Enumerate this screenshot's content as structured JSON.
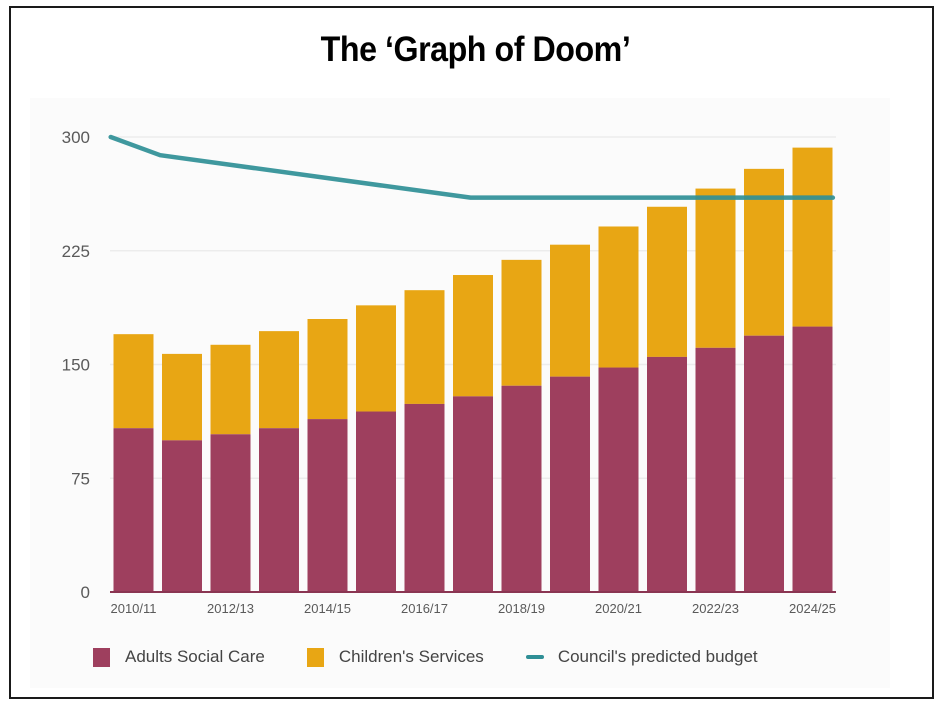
{
  "chart_data": {
    "type": "bar",
    "stacked": true,
    "title": "The ‘Graph of Doom’",
    "xlabel": "",
    "ylabel": "",
    "ylim": [
      0,
      300
    ],
    "yticks": [
      0,
      75,
      150,
      225,
      300
    ],
    "grid": true,
    "legend_position": "bottom",
    "categories": [
      "2010/11",
      "2011/12",
      "2012/13",
      "2013/14",
      "2014/15",
      "2015/16",
      "2016/17",
      "2017/18",
      "2018/19",
      "2019/20",
      "2020/21",
      "2021/22",
      "2022/23",
      "2023/24",
      "2024/25"
    ],
    "xtick_labels": [
      "2010/11",
      "2012/13",
      "2014/15",
      "2016/17",
      "2018/19",
      "2020/21",
      "2022/23",
      "2024/25"
    ],
    "series": [
      {
        "name": "Adults Social Care",
        "type": "bar",
        "color": "#9e3f5e",
        "values": [
          108,
          100,
          104,
          108,
          114,
          119,
          124,
          129,
          136,
          142,
          148,
          155,
          161,
          169,
          175
        ]
      },
      {
        "name": "Children's Services",
        "type": "bar",
        "color": "#e8a614",
        "values": [
          62,
          57,
          59,
          64,
          66,
          70,
          75,
          80,
          83,
          87,
          93,
          99,
          105,
          110,
          118
        ]
      },
      {
        "name": "Council's predicted budget",
        "type": "line",
        "color": "#2f8f96",
        "points": [
          {
            "x": "2010/11 (start)",
            "value": 300
          },
          {
            "x": "2010/11–2011/12",
            "value": 288
          },
          {
            "x": "2017/18",
            "value": 260
          },
          {
            "x": "2024/25 (end)",
            "value": 260
          }
        ]
      }
    ]
  },
  "legend": {
    "items": [
      {
        "label": "Adults Social Care",
        "color": "#9e3f5e",
        "kind": "box"
      },
      {
        "label": "Children's Services",
        "color": "#e8a614",
        "kind": "box"
      },
      {
        "label": "Council's predicted budget",
        "color": "#2f8f96",
        "kind": "line"
      }
    ]
  }
}
